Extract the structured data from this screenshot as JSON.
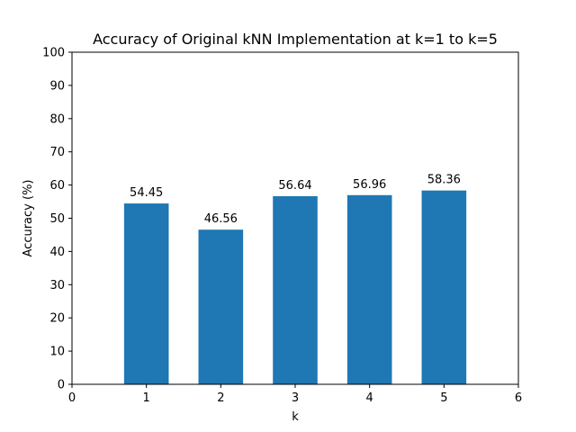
{
  "chart_data": {
    "type": "bar",
    "title": "Accuracy of Original kNN Implementation at k=1 to k=5",
    "xlabel": "k",
    "ylabel": "Accuracy (%)",
    "categories": [
      1,
      2,
      3,
      4,
      5
    ],
    "values": [
      54.45,
      46.56,
      56.64,
      56.96,
      58.36
    ],
    "data_labels": [
      "54.45",
      "46.56",
      "56.64",
      "56.96",
      "58.36"
    ],
    "xlim": [
      0,
      6
    ],
    "ylim": [
      0,
      100
    ],
    "xticks": [
      "0",
      "1",
      "2",
      "3",
      "4",
      "5",
      "6"
    ],
    "yticks": [
      "0",
      "10",
      "20",
      "30",
      "40",
      "50",
      "60",
      "70",
      "80",
      "90",
      "100"
    ],
    "grid": false,
    "legend": "none",
    "bar_color": "#1f77b4"
  }
}
